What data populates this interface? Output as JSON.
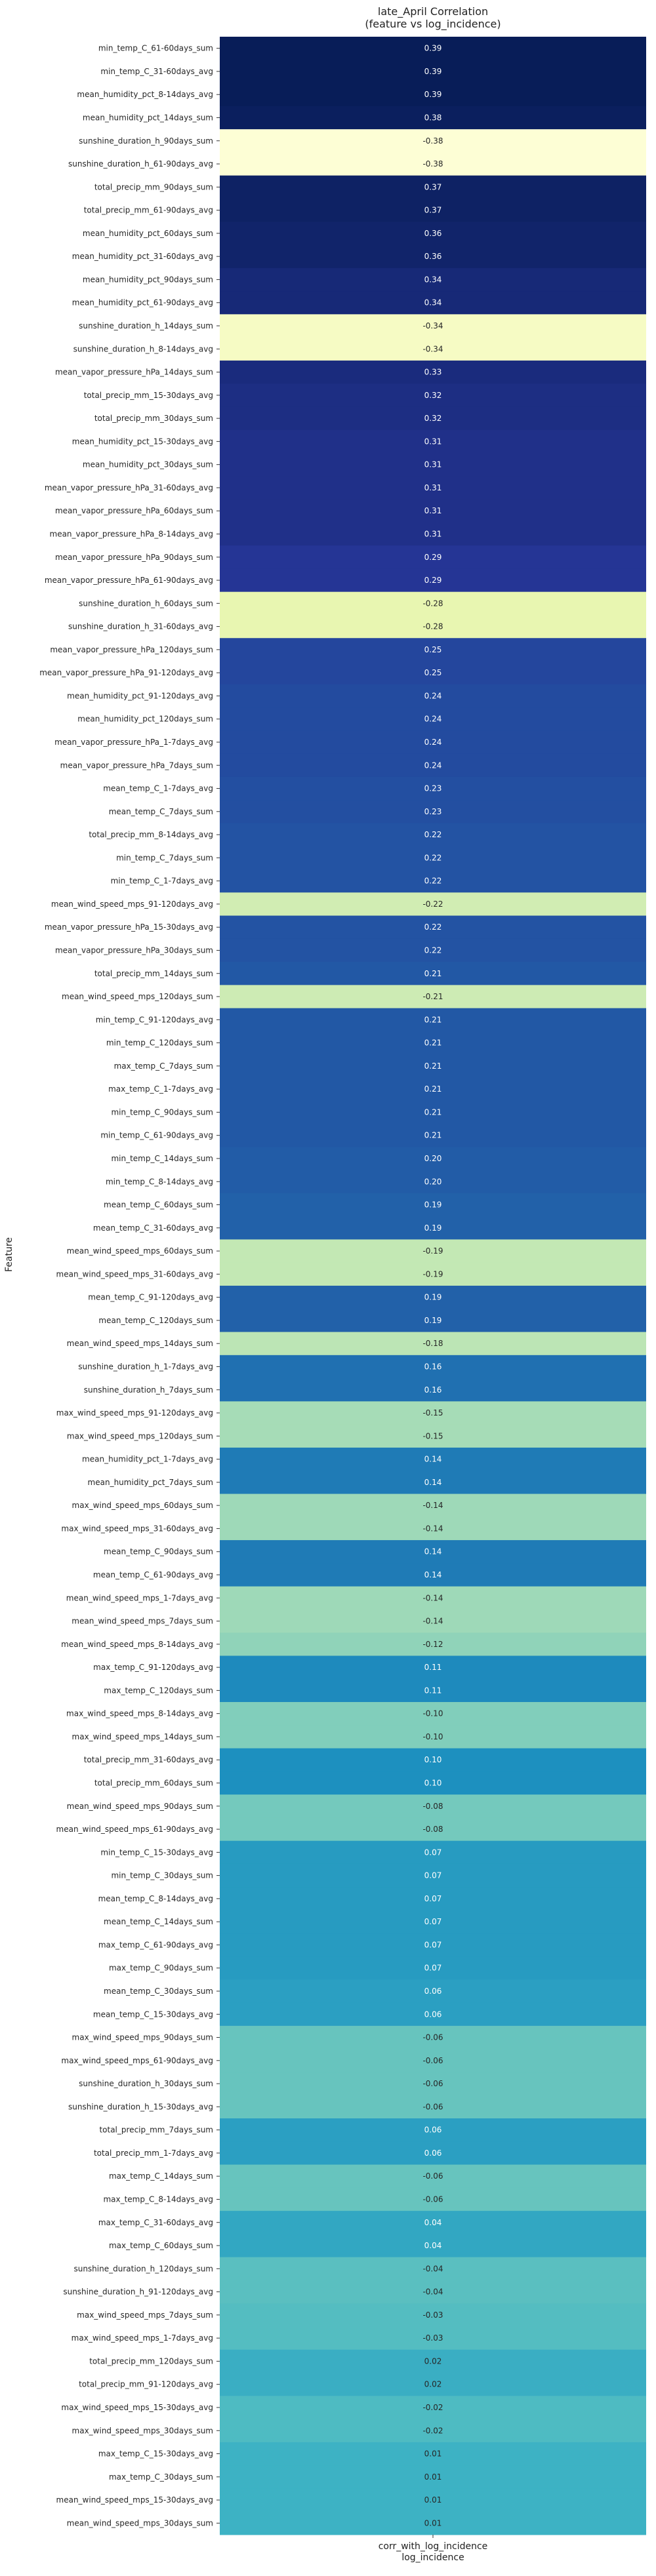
{
  "chart_data": {
    "type": "heatmap",
    "title": "late_April Correlation",
    "subtitle": "(feature vs log_incidence)",
    "ylabel": "Feature",
    "xlabel": "log_incidence",
    "columns": [
      "corr_with_log_incidence"
    ],
    "value_range": [
      -0.39,
      0.39
    ],
    "colormap": "YlGnBu",
    "rows": [
      {
        "feature": "min_temp_C_61-60days_sum",
        "value": 0.39
      },
      {
        "feature": "min_temp_C_31-60days_avg",
        "value": 0.39
      },
      {
        "feature": "mean_humidity_pct_8-14days_avg",
        "value": 0.39
      },
      {
        "feature": "mean_humidity_pct_14days_sum",
        "value": 0.38
      },
      {
        "feature": "sunshine_duration_h_90days_sum",
        "value": -0.38
      },
      {
        "feature": "sunshine_duration_h_61-90days_avg",
        "value": -0.38
      },
      {
        "feature": "total_precip_mm_90days_sum",
        "value": 0.37
      },
      {
        "feature": "total_precip_mm_61-90days_avg",
        "value": 0.37
      },
      {
        "feature": "mean_humidity_pct_60days_sum",
        "value": 0.36
      },
      {
        "feature": "mean_humidity_pct_31-60days_avg",
        "value": 0.36
      },
      {
        "feature": "mean_humidity_pct_90days_sum",
        "value": 0.34
      },
      {
        "feature": "mean_humidity_pct_61-90days_avg",
        "value": 0.34
      },
      {
        "feature": "sunshine_duration_h_14days_sum",
        "value": -0.34
      },
      {
        "feature": "sunshine_duration_h_8-14days_avg",
        "value": -0.34
      },
      {
        "feature": "mean_vapor_pressure_hPa_14days_sum",
        "value": 0.33
      },
      {
        "feature": "total_precip_mm_15-30days_avg",
        "value": 0.32
      },
      {
        "feature": "total_precip_mm_30days_sum",
        "value": 0.32
      },
      {
        "feature": "mean_humidity_pct_15-30days_avg",
        "value": 0.31
      },
      {
        "feature": "mean_humidity_pct_30days_sum",
        "value": 0.31
      },
      {
        "feature": "mean_vapor_pressure_hPa_31-60days_avg",
        "value": 0.31
      },
      {
        "feature": "mean_vapor_pressure_hPa_60days_sum",
        "value": 0.31
      },
      {
        "feature": "mean_vapor_pressure_hPa_8-14days_avg",
        "value": 0.31
      },
      {
        "feature": "mean_vapor_pressure_hPa_90days_sum",
        "value": 0.29
      },
      {
        "feature": "mean_vapor_pressure_hPa_61-90days_avg",
        "value": 0.29
      },
      {
        "feature": "sunshine_duration_h_60days_sum",
        "value": -0.28
      },
      {
        "feature": "sunshine_duration_h_31-60days_avg",
        "value": -0.28
      },
      {
        "feature": "mean_vapor_pressure_hPa_120days_sum",
        "value": 0.25
      },
      {
        "feature": "mean_vapor_pressure_hPa_91-120days_avg",
        "value": 0.25
      },
      {
        "feature": "mean_humidity_pct_91-120days_avg",
        "value": 0.24
      },
      {
        "feature": "mean_humidity_pct_120days_sum",
        "value": 0.24
      },
      {
        "feature": "mean_vapor_pressure_hPa_1-7days_avg",
        "value": 0.24
      },
      {
        "feature": "mean_vapor_pressure_hPa_7days_sum",
        "value": 0.24
      },
      {
        "feature": "mean_temp_C_1-7days_avg",
        "value": 0.23
      },
      {
        "feature": "mean_temp_C_7days_sum",
        "value": 0.23
      },
      {
        "feature": "total_precip_mm_8-14days_avg",
        "value": 0.22
      },
      {
        "feature": "min_temp_C_7days_sum",
        "value": 0.22
      },
      {
        "feature": "min_temp_C_1-7days_avg",
        "value": 0.22
      },
      {
        "feature": "mean_wind_speed_mps_91-120days_avg",
        "value": -0.22
      },
      {
        "feature": "mean_vapor_pressure_hPa_15-30days_avg",
        "value": 0.22
      },
      {
        "feature": "mean_vapor_pressure_hPa_30days_sum",
        "value": 0.22
      },
      {
        "feature": "total_precip_mm_14days_sum",
        "value": 0.21
      },
      {
        "feature": "mean_wind_speed_mps_120days_sum",
        "value": -0.21
      },
      {
        "feature": "min_temp_C_91-120days_avg",
        "value": 0.21
      },
      {
        "feature": "min_temp_C_120days_sum",
        "value": 0.21
      },
      {
        "feature": "max_temp_C_7days_sum",
        "value": 0.21
      },
      {
        "feature": "max_temp_C_1-7days_avg",
        "value": 0.21
      },
      {
        "feature": "min_temp_C_90days_sum",
        "value": 0.21
      },
      {
        "feature": "min_temp_C_61-90days_avg",
        "value": 0.21
      },
      {
        "feature": "min_temp_C_14days_sum",
        "value": 0.2
      },
      {
        "feature": "min_temp_C_8-14days_avg",
        "value": 0.2
      },
      {
        "feature": "mean_temp_C_60days_sum",
        "value": 0.19
      },
      {
        "feature": "mean_temp_C_31-60days_avg",
        "value": 0.19
      },
      {
        "feature": "mean_wind_speed_mps_60days_sum",
        "value": -0.19
      },
      {
        "feature": "mean_wind_speed_mps_31-60days_avg",
        "value": -0.19
      },
      {
        "feature": "mean_temp_C_91-120days_avg",
        "value": 0.19
      },
      {
        "feature": "mean_temp_C_120days_sum",
        "value": 0.19
      },
      {
        "feature": "mean_wind_speed_mps_14days_sum",
        "value": -0.18
      },
      {
        "feature": "sunshine_duration_h_1-7days_avg",
        "value": 0.16
      },
      {
        "feature": "sunshine_duration_h_7days_sum",
        "value": 0.16
      },
      {
        "feature": "max_wind_speed_mps_91-120days_avg",
        "value": -0.15
      },
      {
        "feature": "max_wind_speed_mps_120days_sum",
        "value": -0.15
      },
      {
        "feature": "mean_humidity_pct_1-7days_avg",
        "value": 0.14
      },
      {
        "feature": "mean_humidity_pct_7days_sum",
        "value": 0.14
      },
      {
        "feature": "max_wind_speed_mps_60days_sum",
        "value": -0.14
      },
      {
        "feature": "max_wind_speed_mps_31-60days_avg",
        "value": -0.14
      },
      {
        "feature": "mean_temp_C_90days_sum",
        "value": 0.14
      },
      {
        "feature": "mean_temp_C_61-90days_avg",
        "value": 0.14
      },
      {
        "feature": "mean_wind_speed_mps_1-7days_avg",
        "value": -0.14
      },
      {
        "feature": "mean_wind_speed_mps_7days_sum",
        "value": -0.14
      },
      {
        "feature": "mean_wind_speed_mps_8-14days_avg",
        "value": -0.12
      },
      {
        "feature": "max_temp_C_91-120days_avg",
        "value": 0.11
      },
      {
        "feature": "max_temp_C_120days_sum",
        "value": 0.11
      },
      {
        "feature": "max_wind_speed_mps_8-14days_avg",
        "value": -0.1
      },
      {
        "feature": "max_wind_speed_mps_14days_sum",
        "value": -0.1
      },
      {
        "feature": "total_precip_mm_31-60days_avg",
        "value": 0.1
      },
      {
        "feature": "total_precip_mm_60days_sum",
        "value": 0.1
      },
      {
        "feature": "mean_wind_speed_mps_90days_sum",
        "value": -0.08
      },
      {
        "feature": "mean_wind_speed_mps_61-90days_avg",
        "value": -0.08
      },
      {
        "feature": "min_temp_C_15-30days_avg",
        "value": 0.07
      },
      {
        "feature": "min_temp_C_30days_sum",
        "value": 0.07
      },
      {
        "feature": "mean_temp_C_8-14days_avg",
        "value": 0.07
      },
      {
        "feature": "mean_temp_C_14days_sum",
        "value": 0.07
      },
      {
        "feature": "max_temp_C_61-90days_avg",
        "value": 0.07
      },
      {
        "feature": "max_temp_C_90days_sum",
        "value": 0.07
      },
      {
        "feature": "mean_temp_C_30days_sum",
        "value": 0.06
      },
      {
        "feature": "mean_temp_C_15-30days_avg",
        "value": 0.06
      },
      {
        "feature": "max_wind_speed_mps_90days_sum",
        "value": -0.06
      },
      {
        "feature": "max_wind_speed_mps_61-90days_avg",
        "value": -0.06
      },
      {
        "feature": "sunshine_duration_h_30days_sum",
        "value": -0.06
      },
      {
        "feature": "sunshine_duration_h_15-30days_avg",
        "value": -0.06
      },
      {
        "feature": "total_precip_mm_7days_sum",
        "value": 0.06
      },
      {
        "feature": "total_precip_mm_1-7days_avg",
        "value": 0.06
      },
      {
        "feature": "max_temp_C_14days_sum",
        "value": -0.06
      },
      {
        "feature": "max_temp_C_8-14days_avg",
        "value": -0.06
      },
      {
        "feature": "max_temp_C_31-60days_avg",
        "value": 0.04
      },
      {
        "feature": "max_temp_C_60days_sum",
        "value": 0.04
      },
      {
        "feature": "sunshine_duration_h_120days_sum",
        "value": -0.04
      },
      {
        "feature": "sunshine_duration_h_91-120days_avg",
        "value": -0.04
      },
      {
        "feature": "max_wind_speed_mps_7days_sum",
        "value": -0.03
      },
      {
        "feature": "max_wind_speed_mps_1-7days_avg",
        "value": -0.03
      },
      {
        "feature": "total_precip_mm_120days_sum",
        "value": 0.02
      },
      {
        "feature": "total_precip_mm_91-120days_avg",
        "value": 0.02
      },
      {
        "feature": "max_wind_speed_mps_15-30days_avg",
        "value": -0.02
      },
      {
        "feature": "max_wind_speed_mps_30days_sum",
        "value": -0.02
      },
      {
        "feature": "max_temp_C_15-30days_avg",
        "value": 0.01
      },
      {
        "feature": "max_temp_C_30days_sum",
        "value": 0.01
      },
      {
        "feature": "mean_wind_speed_mps_15-30days_avg",
        "value": 0.01
      },
      {
        "feature": "mean_wind_speed_mps_30days_sum",
        "value": 0.01
      }
    ]
  }
}
